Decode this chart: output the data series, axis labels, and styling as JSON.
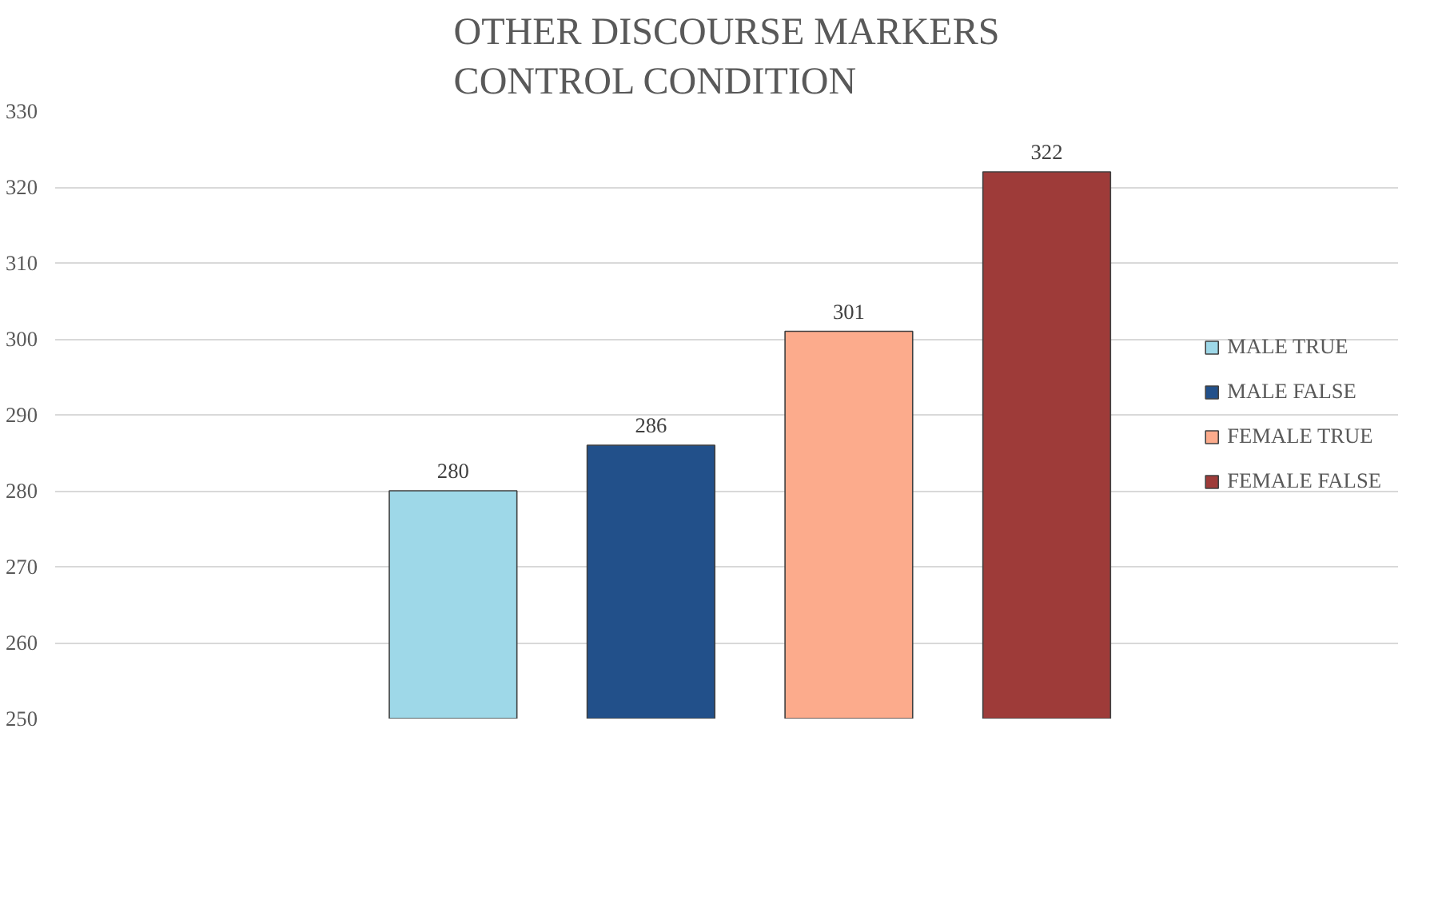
{
  "chart_data": {
    "type": "bar",
    "title": "OTHER DISCOURSE MARKERS\nCONTROL CONDITION",
    "categories": [
      null
    ],
    "series": [
      {
        "name": "MALE TRUE",
        "color": "#9ed8e8",
        "values": [
          280
        ]
      },
      {
        "name": "MALE FALSE",
        "color": "#22508a",
        "values": [
          286
        ]
      },
      {
        "name": "FEMALE TRUE",
        "color": "#fcab8c",
        "values": [
          301
        ]
      },
      {
        "name": "FEMALE FALSE",
        "color": "#9e3b39",
        "values": [
          322
        ]
      }
    ],
    "ylim": [
      250,
      330
    ],
    "yticks": [
      250,
      260,
      270,
      280,
      290,
      300,
      310,
      320,
      330
    ],
    "grid": "y",
    "legend": "right",
    "data_labels": true,
    "tick_labels": "y"
  }
}
